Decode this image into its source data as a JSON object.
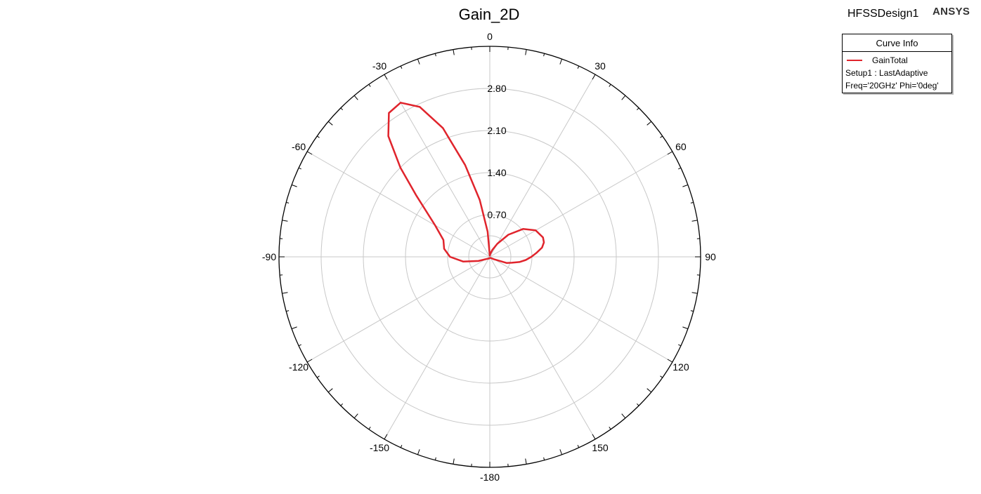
{
  "header": {
    "title": "Gain_2D",
    "design_name": "HFSSDesign1",
    "brand": "ANSYS"
  },
  "legend": {
    "heading": "Curve Info",
    "series_name": "GainTotal",
    "setup_line": "Setup1 : LastAdaptive",
    "params_line": "Freq='20GHz' Phi='0deg'"
  },
  "chart_data": {
    "type": "line",
    "subtype": "polar",
    "title": "Gain_2D",
    "angle_unit": "deg",
    "angle_ticks": [
      0,
      30,
      60,
      90,
      120,
      150,
      -180,
      -150,
      -120,
      -90,
      -60,
      -30
    ],
    "radial_ticks": [
      "0.70",
      "1.40",
      "2.10",
      "2.80"
    ],
    "r_range": [
      0,
      3.5
    ],
    "grid": true,
    "legend_position": "top-right",
    "series": [
      {
        "name": "GainTotal",
        "color": "#e0242c",
        "theta": [
          -180,
          -170,
          -160,
          -150,
          -140,
          -130,
          -120,
          -110,
          -100,
          -90,
          -80,
          -70,
          -60,
          -50,
          -45,
          -40,
          -35,
          -30,
          -25,
          -20,
          -15,
          -10,
          -5,
          0,
          10,
          20,
          30,
          40,
          50,
          60,
          70,
          75,
          80,
          85,
          90,
          95,
          100,
          105,
          110,
          120,
          150,
          180
        ],
        "r": [
          0.02,
          0.02,
          0.03,
          0.03,
          0.04,
          0.05,
          0.08,
          0.2,
          0.45,
          0.66,
          0.77,
          0.82,
          1.05,
          1.6,
          2.1,
          2.62,
          2.92,
          2.96,
          2.75,
          2.28,
          1.58,
          0.96,
          0.42,
          0.02,
          0.05,
          0.12,
          0.25,
          0.48,
          0.72,
          0.88,
          0.94,
          0.93,
          0.88,
          0.78,
          0.69,
          0.6,
          0.5,
          0.38,
          0.3,
          0.08,
          0.02,
          0.02
        ]
      }
    ]
  }
}
